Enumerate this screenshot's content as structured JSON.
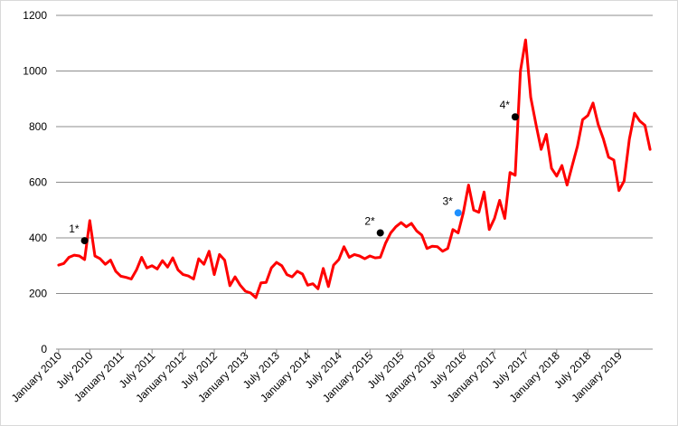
{
  "chart_data": {
    "type": "line",
    "title": "",
    "xlabel": "",
    "ylabel": "",
    "ylim": [
      0,
      1200
    ],
    "yticks": [
      0,
      200,
      400,
      600,
      800,
      1000,
      1200
    ],
    "grid": true,
    "legend": "none",
    "x_tick_labels": [
      "January 2010",
      "July 2010",
      "January 2011",
      "July 2011",
      "January 2012",
      "July 2012",
      "January 2013",
      "July 2013",
      "January 2014",
      "July 2014",
      "January 2015",
      "July 2015",
      "January 2016",
      "July 2016",
      "January 2017",
      "July 2017",
      "January 2018",
      "July 2018",
      "January 2019"
    ],
    "series": [
      {
        "color": "#ff0000",
        "start": "2010-01",
        "values": [
          302,
          308,
          330,
          338,
          335,
          322,
          462,
          335,
          325,
          305,
          320,
          280,
          262,
          258,
          252,
          285,
          330,
          292,
          300,
          288,
          318,
          295,
          328,
          285,
          268,
          263,
          252,
          325,
          305,
          352,
          268,
          340,
          320,
          228,
          260,
          230,
          208,
          202,
          185,
          238,
          240,
          292,
          312,
          300,
          268,
          260,
          280,
          270,
          230,
          235,
          217,
          290,
          225,
          302,
          322,
          368,
          330,
          340,
          335,
          325,
          335,
          328,
          330,
          380,
          418,
          440,
          455,
          440,
          452,
          425,
          410,
          362,
          370,
          368,
          352,
          362,
          430,
          418,
          490,
          590,
          500,
          492,
          565,
          430,
          470,
          535,
          470,
          635,
          625,
          1000,
          1112,
          905,
          808,
          718,
          772,
          650,
          622,
          660,
          590,
          660,
          730,
          825,
          840,
          885,
          808,
          755,
          690,
          680,
          570,
          605,
          755,
          848,
          820,
          805,
          718
        ]
      }
    ],
    "annotations": [
      {
        "label": "1*",
        "date": "2010-06",
        "value": 390,
        "color": "#000000"
      },
      {
        "label": "2*",
        "date": "2015-03",
        "value": 418,
        "color": "#000000"
      },
      {
        "label": "3*",
        "date": "2016-06",
        "value": 490,
        "color": "#1e90ff"
      },
      {
        "label": "4*",
        "date": "2017-05",
        "value": 835,
        "color": "#000000"
      }
    ]
  }
}
